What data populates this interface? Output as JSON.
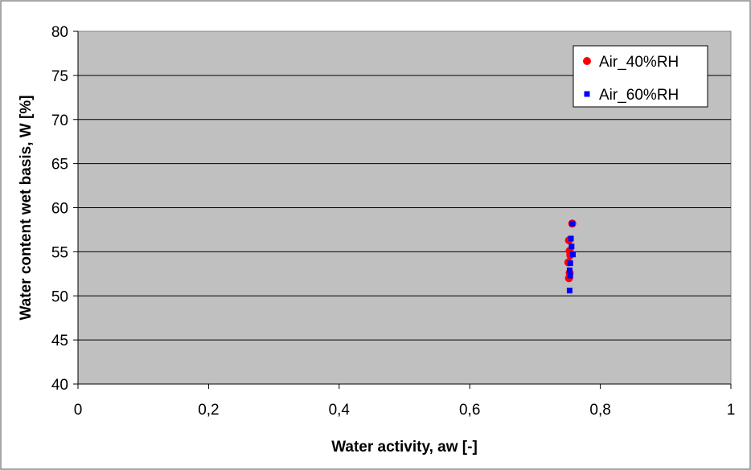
{
  "chart_data": {
    "type": "scatter",
    "title": "",
    "xlabel": "Water activity, aw [-]",
    "ylabel": "Water content wet basis, W [%]",
    "xlim": [
      0,
      1
    ],
    "ylim": [
      40,
      80
    ],
    "x_ticks": [
      0,
      0.2,
      0.4,
      0.6,
      0.8,
      1
    ],
    "x_tick_labels": [
      "0",
      "0,2",
      "0,4",
      "0,6",
      "0,8",
      "1"
    ],
    "y_ticks": [
      40,
      45,
      50,
      55,
      60,
      65,
      70,
      75,
      80
    ],
    "y_tick_labels": [
      "40",
      "45",
      "50",
      "55",
      "60",
      "65",
      "70",
      "75",
      "80"
    ],
    "grid": "horizontal",
    "plot_background": "#c0c0c0",
    "legend_position": "top-right",
    "series": [
      {
        "name": "Air_40%RH",
        "marker": "circle",
        "color": "#ff0000",
        "points": [
          {
            "x": 0.757,
            "y": 58.2
          },
          {
            "x": 0.752,
            "y": 56.3
          },
          {
            "x": 0.753,
            "y": 55.1
          },
          {
            "x": 0.754,
            "y": 54.6
          },
          {
            "x": 0.751,
            "y": 53.8
          },
          {
            "x": 0.753,
            "y": 52.6
          },
          {
            "x": 0.752,
            "y": 52.0
          }
        ]
      },
      {
        "name": "Air_60%RH",
        "marker": "square",
        "color": "#0000ff",
        "points": [
          {
            "x": 0.757,
            "y": 58.2
          },
          {
            "x": 0.755,
            "y": 56.5
          },
          {
            "x": 0.756,
            "y": 55.6
          },
          {
            "x": 0.758,
            "y": 54.7
          },
          {
            "x": 0.754,
            "y": 53.7
          },
          {
            "x": 0.753,
            "y": 52.9
          },
          {
            "x": 0.754,
            "y": 52.3
          },
          {
            "x": 0.753,
            "y": 50.6
          }
        ]
      }
    ]
  }
}
